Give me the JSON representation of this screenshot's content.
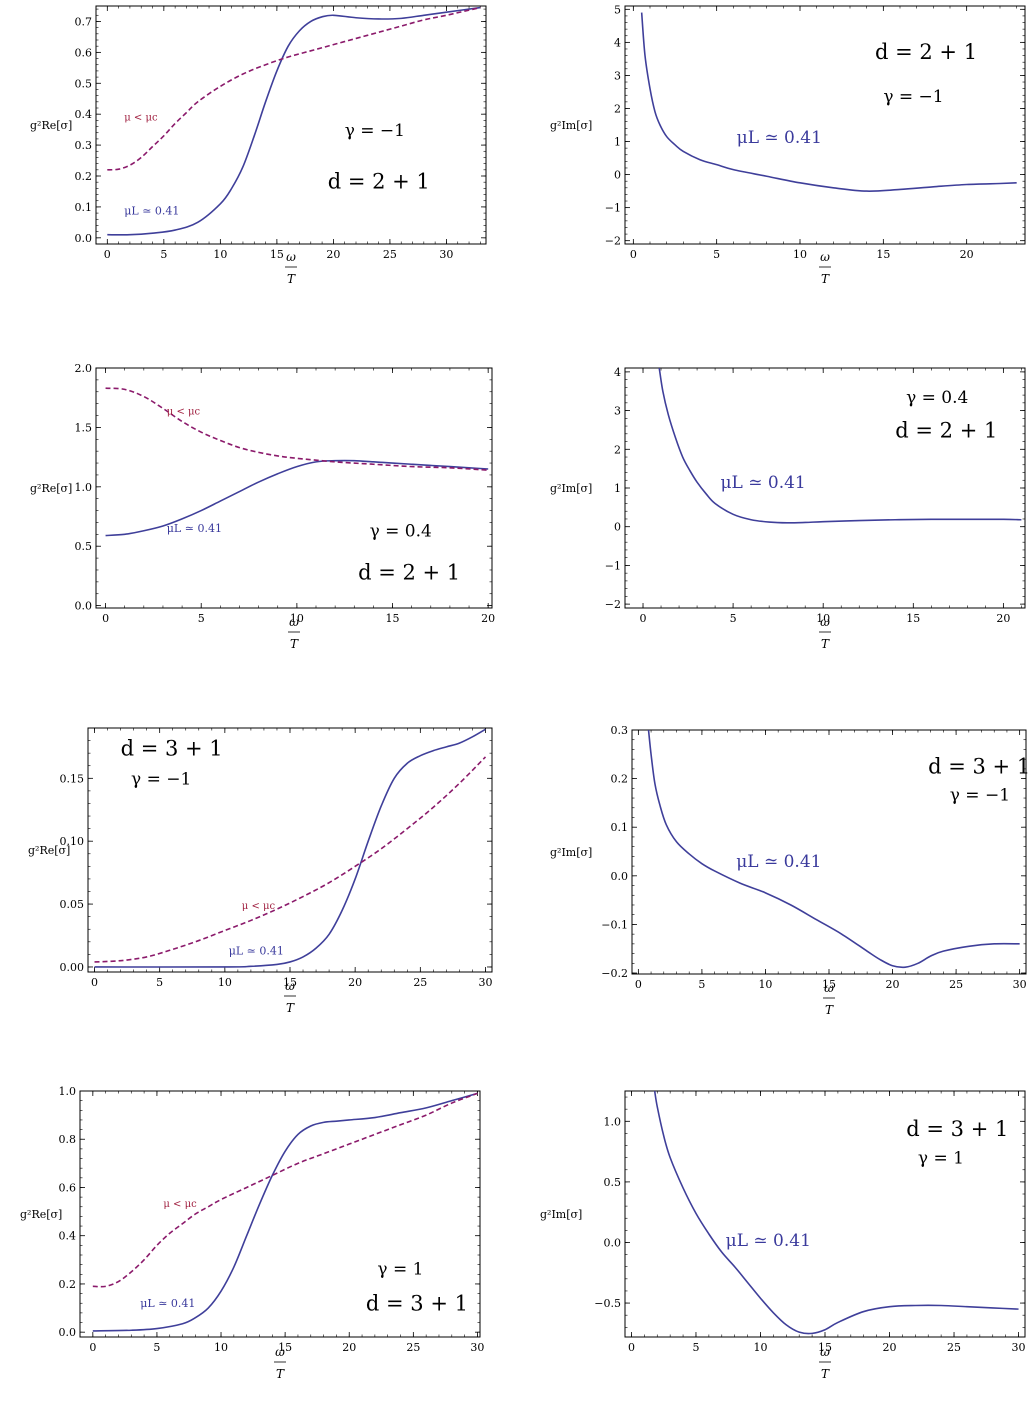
{
  "colors": {
    "solid": "#3f3f9a",
    "dashed": "#8b1a6b",
    "label_blue": "#3a3a9c",
    "label_red": "#a02040"
  },
  "chart_data": [
    {
      "id": "p1",
      "type": "line",
      "xlabel_num": "ω",
      "xlabel_den": "T",
      "ylabel": "g²Re[σ]",
      "xlim": [
        -1,
        33.5
      ],
      "ylim": [
        -0.02,
        0.75
      ],
      "xticks": [
        0,
        5,
        10,
        15,
        20,
        25,
        30
      ],
      "yticks": [
        0.0,
        0.1,
        0.2,
        0.3,
        0.4,
        0.5,
        0.6,
        0.7
      ],
      "series": [
        {
          "name": "μL ≃ 0.41",
          "style": "solid",
          "x": [
            0,
            2,
            4,
            6,
            8,
            10,
            11,
            12,
            13,
            14,
            15,
            16,
            17,
            18,
            19,
            20,
            22,
            24,
            26,
            28,
            30,
            33
          ],
          "y": [
            0.01,
            0.01,
            0.015,
            0.025,
            0.05,
            0.11,
            0.16,
            0.23,
            0.33,
            0.44,
            0.54,
            0.62,
            0.67,
            0.7,
            0.715,
            0.72,
            0.712,
            0.708,
            0.71,
            0.72,
            0.73,
            0.745
          ]
        },
        {
          "name": "μ < μc",
          "style": "dashed",
          "x": [
            0,
            1,
            2,
            3,
            4,
            5,
            6,
            7,
            8,
            10,
            12,
            14,
            16,
            18,
            20,
            22,
            24,
            26,
            28,
            30,
            33
          ],
          "y": [
            0.22,
            0.222,
            0.235,
            0.26,
            0.295,
            0.33,
            0.37,
            0.405,
            0.44,
            0.49,
            0.53,
            0.56,
            0.585,
            0.605,
            0.625,
            0.645,
            0.665,
            0.685,
            0.705,
            0.72,
            0.745
          ]
        }
      ],
      "annotations": [
        {
          "text": "μ < μc",
          "x": 1.5,
          "y": 0.38,
          "class": "red-small"
        },
        {
          "text": "μL ≃ 0.41",
          "x": 1.5,
          "y": 0.075,
          "class": "blue-small"
        },
        {
          "text": "γ = −1",
          "x": 21,
          "y": 0.33,
          "class": "black-small"
        },
        {
          "text": "d = 2 + 1",
          "x": 19.5,
          "y": 0.16,
          "class": "black-big"
        }
      ]
    },
    {
      "id": "p2",
      "type": "line",
      "xlabel_num": "ω",
      "xlabel_den": "T",
      "ylabel": "g²Im[σ]",
      "xlim": [
        -0.5,
        23.5
      ],
      "ylim": [
        -2.1,
        5.1
      ],
      "xticks": [
        0,
        5,
        10,
        15,
        20
      ],
      "yticks": [
        -2,
        -1,
        0,
        1,
        2,
        3,
        4,
        5
      ],
      "series": [
        {
          "name": "μL ≃ 0.41",
          "style": "solid",
          "x": [
            0.5,
            0.7,
            1,
            1.3,
            1.6,
            2,
            2.5,
            3,
            4,
            5,
            6,
            8,
            10,
            12,
            14,
            16,
            18,
            20,
            22,
            23
          ],
          "y": [
            4.9,
            3.6,
            2.6,
            1.9,
            1.5,
            1.15,
            0.9,
            0.7,
            0.45,
            0.3,
            0.15,
            -0.05,
            -0.25,
            -0.4,
            -0.5,
            -0.45,
            -0.37,
            -0.3,
            -0.27,
            -0.25
          ]
        }
      ],
      "annotations": [
        {
          "text": "d = 2 + 1",
          "x": 14.5,
          "y": 3.5,
          "class": "black-big"
        },
        {
          "text": "γ = −1",
          "x": 15,
          "y": 2.2,
          "class": "black-small"
        },
        {
          "text": "μL ≃ 0.41",
          "x": 6.2,
          "y": 0.95,
          "class": "blue-big"
        }
      ]
    },
    {
      "id": "p3",
      "type": "line",
      "xlabel_num": "ω",
      "xlabel_den": "T",
      "ylabel": "g²Re[σ]",
      "xlim": [
        -0.5,
        20.2
      ],
      "ylim": [
        -0.02,
        2.0
      ],
      "xticks": [
        0,
        5,
        10,
        15,
        20
      ],
      "yticks": [
        0.0,
        0.5,
        1.0,
        1.5,
        2.0
      ],
      "series": [
        {
          "name": "μL ≃ 0.41",
          "style": "solid",
          "x": [
            0,
            1,
            2,
            3,
            4,
            5,
            6,
            7,
            8,
            9,
            10,
            11,
            12,
            13,
            14,
            15,
            16,
            17,
            18,
            19,
            20
          ],
          "y": [
            0.59,
            0.6,
            0.63,
            0.67,
            0.73,
            0.8,
            0.88,
            0.96,
            1.04,
            1.11,
            1.17,
            1.21,
            1.22,
            1.22,
            1.21,
            1.2,
            1.19,
            1.18,
            1.17,
            1.16,
            1.15
          ]
        },
        {
          "name": "μ < μc",
          "style": "dashed",
          "x": [
            0,
            1,
            2,
            3,
            4,
            5,
            6,
            7,
            8,
            9,
            10,
            12,
            14,
            16,
            18,
            20
          ],
          "y": [
            1.83,
            1.82,
            1.76,
            1.66,
            1.55,
            1.46,
            1.39,
            1.33,
            1.29,
            1.26,
            1.24,
            1.21,
            1.19,
            1.17,
            1.16,
            1.14
          ]
        }
      ],
      "annotations": [
        {
          "text": "μ < μc",
          "x": 3.2,
          "y": 1.61,
          "class": "red-small"
        },
        {
          "text": "μL ≃ 0.41",
          "x": 3.2,
          "y": 0.62,
          "class": "blue-small"
        },
        {
          "text": "γ = 0.4",
          "x": 13.8,
          "y": 0.58,
          "class": "black-small"
        },
        {
          "text": "d = 2 + 1",
          "x": 13.2,
          "y": 0.22,
          "class": "black-big"
        }
      ]
    },
    {
      "id": "p4",
      "type": "line",
      "xlabel_num": "ω",
      "xlabel_den": "T",
      "ylabel": "g²Im[σ]",
      "xlim": [
        -1,
        21.2
      ],
      "ylim": [
        -2.1,
        4.1
      ],
      "xticks": [
        0,
        5,
        10,
        15,
        20
      ],
      "yticks": [
        -2,
        -1,
        0,
        1,
        2,
        3,
        4
      ],
      "series": [
        {
          "name": "μL ≃ 0.41",
          "style": "solid",
          "x": [
            0.9,
            1.1,
            1.4,
            1.8,
            2.2,
            2.6,
            3,
            3.5,
            4,
            5,
            6,
            7,
            8,
            9,
            10,
            12,
            14,
            16,
            18,
            20,
            21
          ],
          "y": [
            4.1,
            3.5,
            2.9,
            2.3,
            1.8,
            1.45,
            1.15,
            0.85,
            0.6,
            0.32,
            0.18,
            0.12,
            0.1,
            0.11,
            0.13,
            0.16,
            0.18,
            0.19,
            0.19,
            0.19,
            0.18
          ]
        }
      ],
      "annotations": [
        {
          "text": "γ = 0.4",
          "x": 14.6,
          "y": 3.2,
          "class": "black-small"
        },
        {
          "text": "d = 2 + 1",
          "x": 14,
          "y": 2.3,
          "class": "black-big"
        },
        {
          "text": "μL ≃ 0.41",
          "x": 4.3,
          "y": 1.0,
          "class": "blue-big"
        }
      ]
    },
    {
      "id": "p5",
      "type": "line",
      "xlabel_num": "ω",
      "xlabel_den": "T",
      "ylabel": "g²Re[σ]",
      "xlim": [
        -0.5,
        30.5
      ],
      "ylim": [
        -0.004,
        0.19
      ],
      "xticks": [
        0,
        5,
        10,
        15,
        20,
        25,
        30
      ],
      "yticks": [
        0.0,
        0.05,
        0.1,
        0.15
      ],
      "series": [
        {
          "name": "μL ≃ 0.41",
          "style": "solid",
          "x": [
            0,
            10,
            12,
            14,
            15,
            16,
            17,
            18,
            19,
            20,
            21,
            22,
            23,
            24,
            25,
            26,
            27,
            28,
            29,
            30
          ],
          "y": [
            0,
            0,
            0.0005,
            0.002,
            0.004,
            0.008,
            0.015,
            0.026,
            0.045,
            0.07,
            0.1,
            0.128,
            0.15,
            0.162,
            0.168,
            0.172,
            0.175,
            0.178,
            0.183,
            0.189
          ]
        },
        {
          "name": "μ < μc",
          "style": "dashed",
          "x": [
            0,
            2,
            4,
            6,
            8,
            10,
            12,
            14,
            16,
            18,
            20,
            22,
            24,
            26,
            28,
            30
          ],
          "y": [
            0.004,
            0.005,
            0.008,
            0.014,
            0.021,
            0.029,
            0.037,
            0.046,
            0.056,
            0.067,
            0.08,
            0.094,
            0.11,
            0.127,
            0.146,
            0.167
          ]
        }
      ],
      "annotations": [
        {
          "text": "d = 3 + 1",
          "x": 2,
          "y": 0.168,
          "class": "black-big"
        },
        {
          "text": "γ = −1",
          "x": 2.8,
          "y": 0.145,
          "class": "black-small"
        },
        {
          "text": "μ < μc",
          "x": 11.3,
          "y": 0.046,
          "class": "red-small"
        },
        {
          "text": "μL ≃ 0.41",
          "x": 10.3,
          "y": 0.01,
          "class": "blue-small"
        }
      ]
    },
    {
      "id": "p6",
      "type": "line",
      "xlabel_num": "ω",
      "xlabel_den": "T",
      "ylabel": "g²Im[σ]",
      "xlim": [
        -0.5,
        30.5
      ],
      "ylim": [
        -0.202,
        0.3
      ],
      "xticks": [
        0,
        5,
        10,
        15,
        20,
        25,
        30
      ],
      "yticks": [
        -0.2,
        -0.1,
        0.0,
        0.1,
        0.2,
        0.3
      ],
      "series": [
        {
          "name": "μL ≃ 0.41",
          "style": "solid",
          "x": [
            0.8,
            1,
            1.3,
            1.7,
            2.2,
            3,
            4,
            5,
            6,
            8,
            10,
            12,
            14,
            16,
            18,
            19,
            20,
            21,
            22,
            23,
            24,
            26,
            28,
            30
          ],
          "y": [
            0.3,
            0.25,
            0.19,
            0.145,
            0.105,
            0.07,
            0.045,
            0.025,
            0.01,
            -0.015,
            -0.035,
            -0.06,
            -0.09,
            -0.12,
            -0.155,
            -0.172,
            -0.185,
            -0.188,
            -0.18,
            -0.165,
            -0.155,
            -0.145,
            -0.14,
            -0.14
          ]
        }
      ],
      "annotations": [
        {
          "text": "d = 3 + 1",
          "x": 22.8,
          "y": 0.21,
          "class": "black-big"
        },
        {
          "text": "γ = −1",
          "x": 24.5,
          "y": 0.155,
          "class": "black-small"
        },
        {
          "text": "μL ≃ 0.41",
          "x": 7.7,
          "y": 0.018,
          "class": "blue-big"
        }
      ]
    },
    {
      "id": "p7",
      "type": "line",
      "xlabel_num": "ω",
      "xlabel_den": "T",
      "ylabel": "g²Re[σ]",
      "xlim": [
        -1,
        30.2
      ],
      "ylim": [
        -0.02,
        1.0
      ],
      "xticks": [
        0,
        5,
        10,
        15,
        20,
        25,
        30
      ],
      "yticks": [
        0.0,
        0.2,
        0.4,
        0.6,
        0.8,
        1.0
      ],
      "series": [
        {
          "name": "μL ≃ 0.41",
          "style": "solid",
          "x": [
            0,
            3,
            5,
            7,
            8,
            9,
            10,
            11,
            12,
            13,
            14,
            15,
            16,
            17,
            18,
            19,
            20,
            22,
            24,
            26,
            28,
            30
          ],
          "y": [
            0.005,
            0.008,
            0.015,
            0.035,
            0.06,
            0.1,
            0.17,
            0.27,
            0.4,
            0.53,
            0.65,
            0.75,
            0.82,
            0.855,
            0.87,
            0.875,
            0.88,
            0.89,
            0.91,
            0.93,
            0.96,
            0.99
          ]
        },
        {
          "name": "μ < μc",
          "style": "dashed",
          "x": [
            0,
            1,
            2,
            3,
            4,
            5,
            6,
            7,
            8,
            9,
            10,
            12,
            14,
            16,
            18,
            20,
            22,
            24,
            26,
            28,
            30
          ],
          "y": [
            0.19,
            0.19,
            0.21,
            0.25,
            0.3,
            0.36,
            0.41,
            0.45,
            0.49,
            0.52,
            0.55,
            0.6,
            0.65,
            0.7,
            0.74,
            0.78,
            0.82,
            0.86,
            0.9,
            0.95,
            0.99
          ]
        }
      ],
      "annotations": [
        {
          "text": "μ < μc",
          "x": 5.5,
          "y": 0.52,
          "class": "red-small"
        },
        {
          "text": "μL ≃ 0.41",
          "x": 3.7,
          "y": 0.105,
          "class": "blue-small"
        },
        {
          "text": "γ = 1",
          "x": 22.2,
          "y": 0.24,
          "class": "black-small"
        },
        {
          "text": "d = 3 + 1",
          "x": 21.3,
          "y": 0.09,
          "class": "black-big"
        }
      ]
    },
    {
      "id": "p8",
      "type": "line",
      "xlabel_num": "ω",
      "xlabel_den": "T",
      "ylabel": "g²Im[σ]",
      "xlim": [
        -0.5,
        30.5
      ],
      "ylim": [
        -0.78,
        1.25
      ],
      "xticks": [
        0,
        5,
        10,
        15,
        20,
        25,
        30
      ],
      "yticks": [
        -0.5,
        0.0,
        0.5,
        1.0
      ],
      "series": [
        {
          "name": "μL ≃ 0.41",
          "style": "solid",
          "x": [
            1.8,
            2,
            2.5,
            3,
            4,
            5,
            6,
            7,
            8,
            9,
            10,
            11,
            12,
            13,
            14,
            15,
            16,
            18,
            20,
            22,
            24,
            26,
            28,
            30
          ],
          "y": [
            1.25,
            1.12,
            0.88,
            0.7,
            0.45,
            0.24,
            0.07,
            -0.08,
            -0.2,
            -0.33,
            -0.46,
            -0.58,
            -0.68,
            -0.74,
            -0.75,
            -0.72,
            -0.66,
            -0.57,
            -0.53,
            -0.52,
            -0.52,
            -0.53,
            -0.54,
            -0.55
          ]
        }
      ],
      "annotations": [
        {
          "text": "d = 3 + 1",
          "x": 21.3,
          "y": 0.88,
          "class": "black-big"
        },
        {
          "text": "γ = 1",
          "x": 22.2,
          "y": 0.65,
          "class": "black-small"
        },
        {
          "text": "μL ≃ 0.41",
          "x": 7.3,
          "y": -0.03,
          "class": "blue-big"
        }
      ]
    }
  ]
}
